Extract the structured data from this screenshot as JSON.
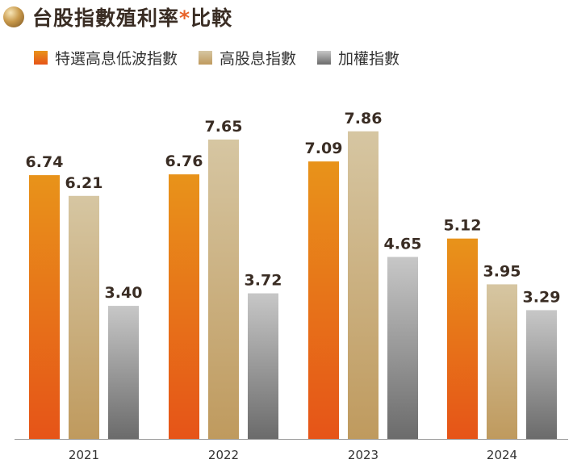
{
  "title": {
    "text": "台股指數殖利率",
    "star": "*",
    "suffix": "比較"
  },
  "colors": {
    "title_dot": "#c99a4c",
    "star": "#e8632a",
    "baseline": "#9a9a9a"
  },
  "chart_data": {
    "type": "bar",
    "title": "台股指數殖利率*比較",
    "categories": [
      "2021",
      "2022",
      "2023",
      "2024"
    ],
    "ylim": [
      0,
      9.03
    ],
    "grid": false,
    "legend_position": "top-left",
    "series": [
      {
        "name": "特選高息低波指數",
        "values": [
          6.74,
          6.76,
          7.09,
          5.12
        ],
        "color_top": "#e8931a",
        "color_bottom": "#e65418"
      },
      {
        "name": "高股息指數",
        "values": [
          6.21,
          7.65,
          7.86,
          3.95
        ],
        "color_top": "#d6c6a2",
        "color_bottom": "#bf9a5e"
      },
      {
        "name": "加權指數",
        "values": [
          3.4,
          3.72,
          4.65,
          3.29
        ],
        "color_top": "#c7c7c7",
        "color_bottom": "#6b6b6b"
      }
    ],
    "data_labels": [
      [
        "6.74",
        "6.21",
        "3.40"
      ],
      [
        "6.76",
        "7.65",
        "3.72"
      ],
      [
        "7.09",
        "7.86",
        "4.65"
      ],
      [
        "5.12",
        "3.95",
        "3.29"
      ]
    ]
  }
}
